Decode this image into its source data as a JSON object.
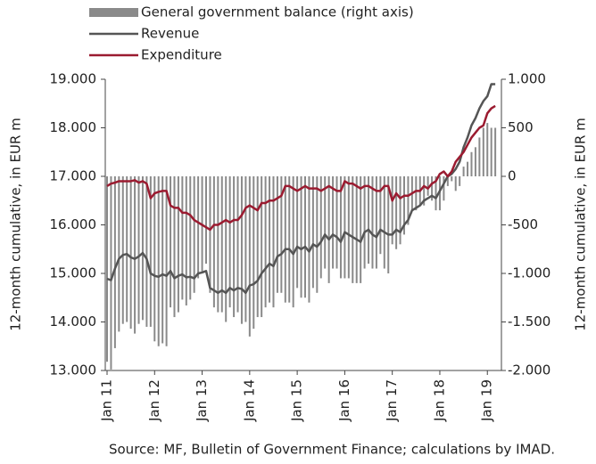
{
  "chart_data": {
    "type": "bar+line",
    "y_label": "12-month cumulative, in EUR m",
    "y2_label": "12-month cumulative, in EUR m",
    "source": "Source: MF, Bulletin of Government Finance; calculations by IMAD.",
    "categories": [
      "Jan 11",
      null,
      null,
      null,
      null,
      null,
      null,
      null,
      null,
      null,
      null,
      null,
      "Jan 12",
      null,
      null,
      null,
      null,
      null,
      null,
      null,
      null,
      null,
      null,
      null,
      "Jan 13",
      null,
      null,
      null,
      null,
      null,
      null,
      null,
      null,
      null,
      null,
      null,
      "Jan 14",
      null,
      null,
      null,
      null,
      null,
      null,
      null,
      null,
      null,
      null,
      null,
      "Jan 15",
      null,
      null,
      null,
      null,
      null,
      null,
      null,
      null,
      null,
      null,
      null,
      "Jan 16",
      null,
      null,
      null,
      null,
      null,
      null,
      null,
      null,
      null,
      null,
      null,
      "Jan 17",
      null,
      null,
      null,
      null,
      null,
      null,
      null,
      null,
      null,
      null,
      null,
      "Jan 18",
      null,
      null,
      null,
      null,
      null,
      null,
      null,
      null,
      null,
      null,
      null,
      "Jan 19",
      null,
      null
    ],
    "ylim": [
      13000,
      19000
    ],
    "yticks": [
      {
        "value": 13000,
        "label": "13.000"
      },
      {
        "value": 14000,
        "label": "14.000"
      },
      {
        "value": 15000,
        "label": "15.000"
      },
      {
        "value": 16000,
        "label": "16.000"
      },
      {
        "value": 17000,
        "label": "17.000"
      },
      {
        "value": 18000,
        "label": "18.000"
      },
      {
        "value": 19000,
        "label": "19.000"
      }
    ],
    "y2lim": [
      -2000,
      1000
    ],
    "y2ticks": [
      {
        "value": -2000,
        "label": "-2.000"
      },
      {
        "value": -1500,
        "label": "-1.500"
      },
      {
        "value": -1000,
        "label": "-1.000"
      },
      -500,
      0,
      500,
      {
        "value": 1000,
        "label": "1.000"
      }
    ],
    "series": [
      {
        "name": "General government balance (right axis)",
        "type": "bar",
        "axis": "y2",
        "color": "#8a8a8a",
        "values": [
          -1910,
          -1990,
          -1770,
          -1600,
          -1520,
          -1500,
          -1570,
          -1620,
          -1520,
          -1480,
          -1550,
          -1550,
          -1700,
          -1750,
          -1720,
          -1750,
          -1350,
          -1450,
          -1400,
          -1270,
          -1330,
          -1270,
          -1200,
          -1050,
          -980,
          -900,
          -1200,
          -1350,
          -1400,
          -1400,
          -1500,
          -1350,
          -1450,
          -1400,
          -1520,
          -1500,
          -1650,
          -1570,
          -1450,
          -1450,
          -1350,
          -1300,
          -1350,
          -1200,
          -1200,
          -1300,
          -1300,
          -1350,
          -1150,
          -1250,
          -1250,
          -1300,
          -1150,
          -1200,
          -1050,
          -950,
          -1100,
          -950,
          -950,
          -1050,
          -1050,
          -1050,
          -1100,
          -1100,
          -1100,
          -950,
          -900,
          -950,
          -950,
          -800,
          -950,
          -1000,
          -700,
          -750,
          -700,
          -600,
          -500,
          -350,
          -350,
          -300,
          -300,
          -200,
          -250,
          -350,
          -350,
          -250,
          -100,
          -50,
          -150,
          -100,
          100,
          150,
          250,
          300,
          400,
          500,
          550,
          500,
          500
        ]
      },
      {
        "name": "Revenue",
        "type": "line",
        "color": "#555555",
        "values": [
          14890,
          14860,
          15100,
          15300,
          15380,
          15400,
          15330,
          15300,
          15350,
          15420,
          15300,
          15000,
          14950,
          14930,
          14980,
          14950,
          15050,
          14900,
          14950,
          14980,
          14920,
          14930,
          14900,
          15000,
          15020,
          15050,
          14700,
          14650,
          14600,
          14650,
          14600,
          14700,
          14650,
          14700,
          14680,
          14600,
          14750,
          14780,
          14850,
          15000,
          15100,
          15200,
          15150,
          15350,
          15400,
          15500,
          15500,
          15400,
          15550,
          15500,
          15550,
          15450,
          15600,
          15550,
          15650,
          15800,
          15700,
          15800,
          15750,
          15650,
          15850,
          15800,
          15750,
          15700,
          15650,
          15850,
          15900,
          15800,
          15750,
          15900,
          15850,
          15800,
          15800,
          15900,
          15850,
          16000,
          16100,
          16300,
          16350,
          16400,
          16500,
          16550,
          16600,
          16550,
          16700,
          16850,
          17000,
          17050,
          17150,
          17300,
          17600,
          17800,
          18050,
          18200,
          18400,
          18550,
          18650,
          18900,
          18900
        ]
      },
      {
        "name": "Expenditure",
        "type": "line",
        "color": "#9b1b30",
        "values": [
          16800,
          16850,
          16870,
          16900,
          16900,
          16900,
          16900,
          16920,
          16870,
          16900,
          16850,
          16550,
          16650,
          16680,
          16700,
          16700,
          16400,
          16350,
          16350,
          16250,
          16250,
          16200,
          16100,
          16050,
          16000,
          15950,
          15900,
          16000,
          16000,
          16050,
          16100,
          16050,
          16100,
          16100,
          16200,
          16350,
          16400,
          16350,
          16300,
          16450,
          16450,
          16500,
          16500,
          16550,
          16600,
          16800,
          16800,
          16750,
          16700,
          16750,
          16800,
          16750,
          16750,
          16750,
          16700,
          16750,
          16800,
          16750,
          16700,
          16700,
          16900,
          16850,
          16850,
          16800,
          16750,
          16800,
          16800,
          16750,
          16700,
          16700,
          16800,
          16800,
          16500,
          16650,
          16550,
          16600,
          16600,
          16650,
          16700,
          16700,
          16800,
          16750,
          16850,
          16900,
          17050,
          17100,
          17000,
          17100,
          17300,
          17400,
          17500,
          17650,
          17800,
          17900,
          18000,
          18050,
          18300,
          18400,
          18450
        ]
      }
    ]
  }
}
